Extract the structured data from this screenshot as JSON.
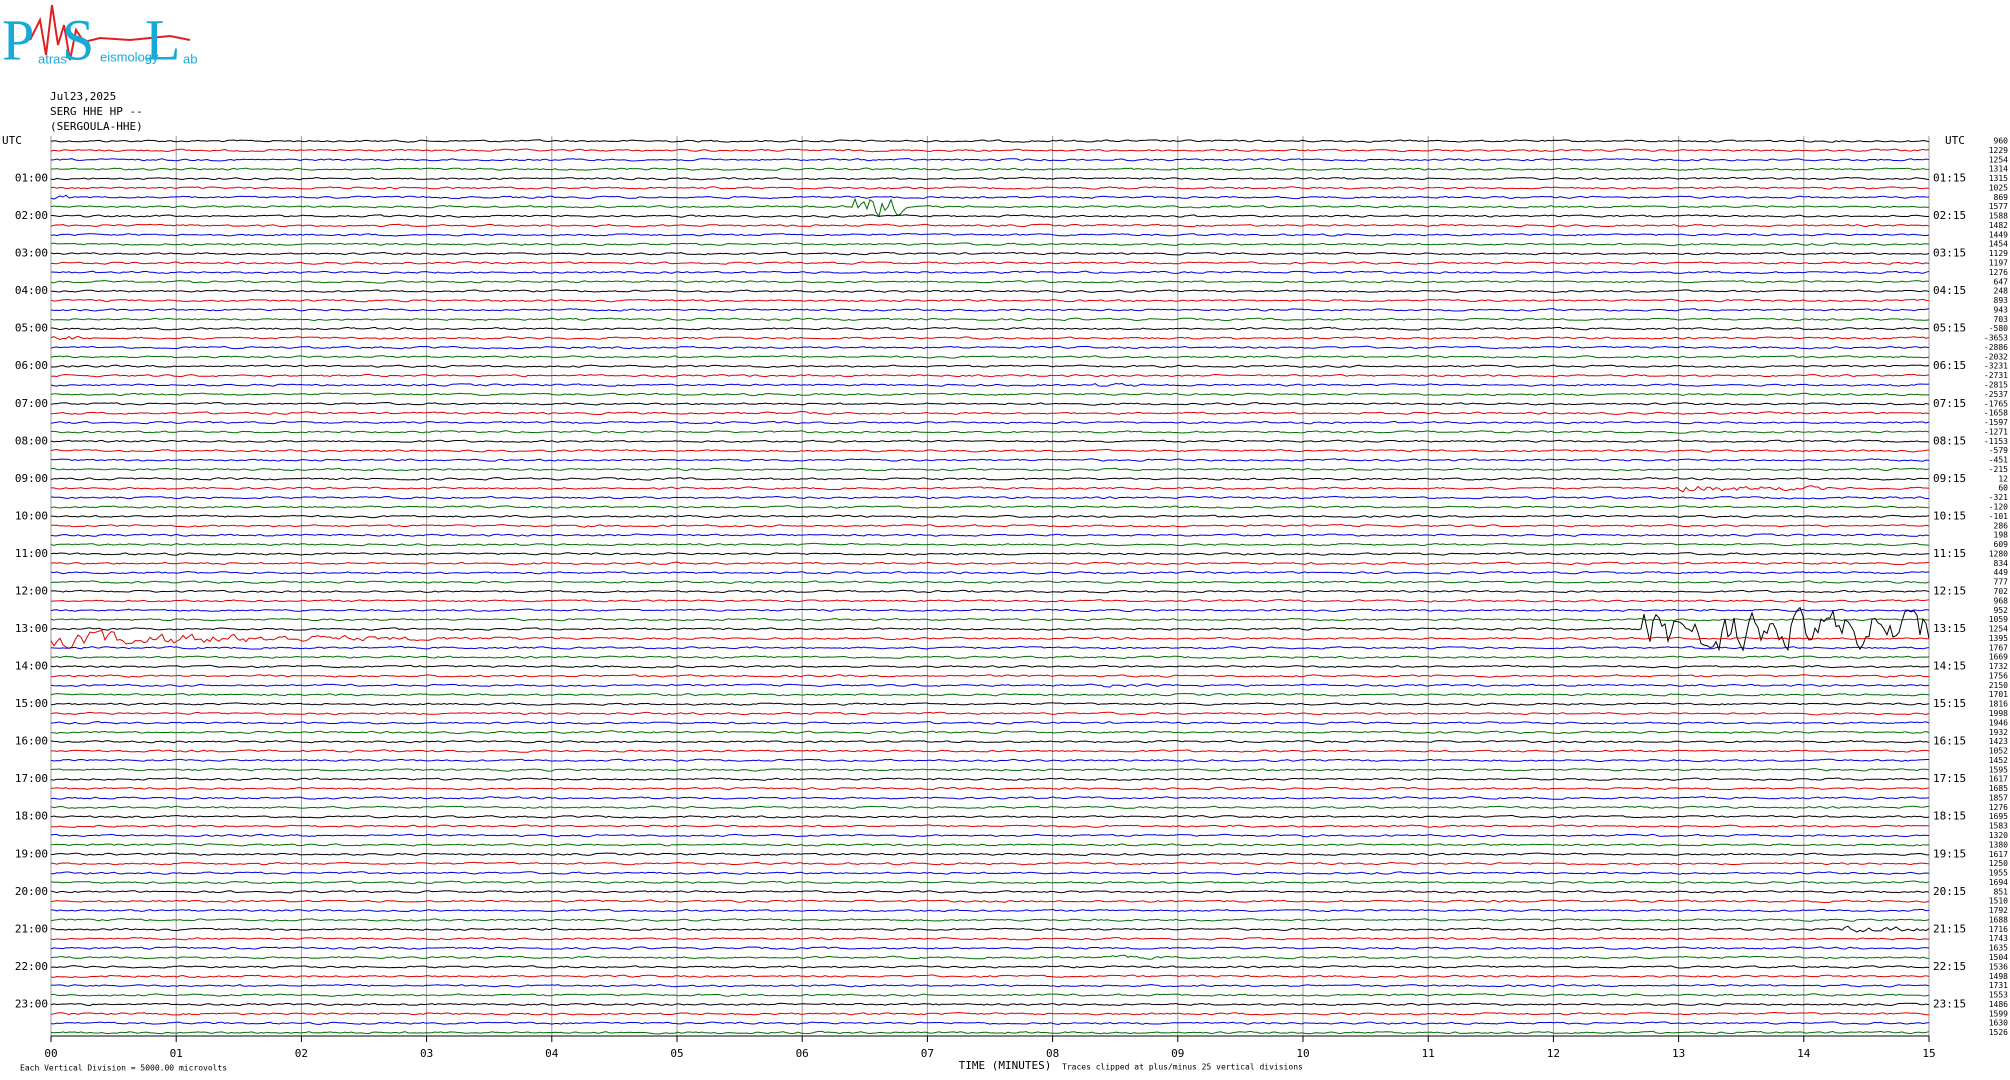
{
  "chart_data": {
    "type": "helicorder",
    "logo": {
      "big": [
        "P",
        "S",
        "L"
      ],
      "small": [
        "atras",
        "eismology",
        "ab"
      ]
    },
    "title_lines": [
      "Jul23,2025",
      "SERG HHE HP --",
      "(SERGOULA-HHE)"
    ],
    "xlabel": "TIME (MINUTES)",
    "xlim": [
      0,
      15
    ],
    "xticks": [
      {
        "value": 0,
        "label": "00"
      },
      {
        "value": 1,
        "label": "01"
      },
      {
        "value": 2,
        "label": "02"
      },
      {
        "value": 3,
        "label": "03"
      },
      {
        "value": 4,
        "label": "04"
      },
      {
        "value": 5,
        "label": "05"
      },
      {
        "value": 6,
        "label": "06"
      },
      {
        "value": 7,
        "label": "07"
      },
      {
        "value": 8,
        "label": "08"
      },
      {
        "value": 9,
        "label": "09"
      },
      {
        "value": 10,
        "label": "10"
      },
      {
        "value": 11,
        "label": "11"
      },
      {
        "value": 12,
        "label": "12"
      },
      {
        "value": 13,
        "label": "13"
      },
      {
        "value": 14,
        "label": "14"
      },
      {
        "value": 15,
        "label": "15"
      }
    ],
    "grid": true,
    "trace_colors": [
      "#000000",
      "#e00000",
      "#0000e0",
      "#007000"
    ],
    "left_labels": [
      "UTC",
      "01:00",
      "02:00",
      "03:00",
      "04:00",
      "05:00",
      "06:00",
      "07:00",
      "08:00",
      "09:00",
      "10:00",
      "11:00",
      "12:00",
      "13:00",
      "14:00",
      "15:00",
      "16:00",
      "17:00",
      "18:00",
      "19:00",
      "20:00",
      "21:00",
      "22:00",
      "23:00"
    ],
    "right_labels": [
      "UTC",
      "01:15",
      "02:15",
      "03:15",
      "04:15",
      "05:15",
      "06:15",
      "07:15",
      "08:15",
      "09:15",
      "10:15",
      "11:15",
      "12:15",
      "13:15",
      "14:15",
      "15:15",
      "16:15",
      "17:15",
      "18:15",
      "19:15",
      "20:15",
      "21:15",
      "22:15",
      "23:15"
    ],
    "trace_offsets": [
      960,
      1229,
      1254,
      1314,
      1315,
      1025,
      869,
      1577,
      1588,
      1482,
      1449,
      1454,
      1129,
      1197,
      1276,
      647,
      248,
      893,
      943,
      703,
      -580,
      -3653,
      -2886,
      -2032,
      -3231,
      -2731,
      -2815,
      -2537,
      -1765,
      -1658,
      -1597,
      -1271,
      -1153,
      -579,
      -451,
      -215,
      12,
      60,
      -321,
      -120,
      -101,
      286,
      198,
      609,
      1280,
      834,
      449,
      777,
      702,
      968,
      952,
      1059,
      1254,
      1395,
      1767,
      1669,
      1732,
      1756,
      2150,
      1701,
      1816,
      1998,
      1946,
      1932,
      1423,
      1052,
      1452,
      1595,
      1617,
      1685,
      1857,
      1276,
      1695,
      1583,
      1320,
      1380,
      1617,
      1250,
      1955,
      1694,
      851,
      1510,
      1792,
      1688,
      1716,
      1743,
      1635,
      1504,
      1536,
      1498,
      1731,
      1553,
      1486,
      1599,
      1630,
      1526
    ],
    "scale_note": "Each Vertical Division = 5000.00 microvolts",
    "clip_note": "Traces clipped at plus/minus 25 vertical divisions"
  }
}
